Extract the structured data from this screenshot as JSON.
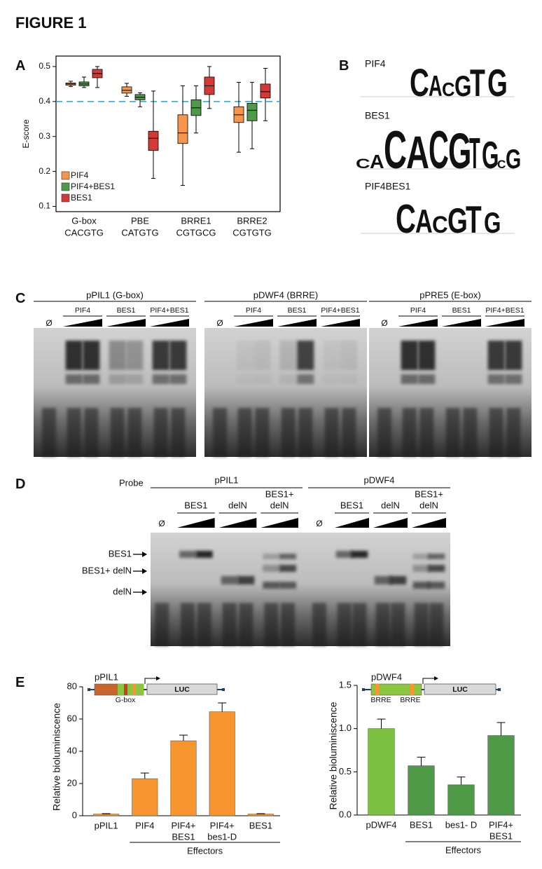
{
  "figure_title": "FIGURE 1",
  "panel_labels": [
    "A",
    "B",
    "C",
    "D",
    "E"
  ],
  "chart_data": [
    {
      "type": "box",
      "y_label": "E-score",
      "categories": [
        "G-box",
        "PBE",
        "BRRE1",
        "BRRE2"
      ],
      "category_sequences": [
        "CACGTG",
        "CATGTG",
        "CGTGCG",
        "CGTGTG"
      ],
      "ylim": [
        0.085,
        0.53
      ],
      "yticks": [
        0.1,
        0.2,
        0.3,
        0.4,
        0.5
      ],
      "reference_line": 0.4,
      "reference_color": "#2aa3c8",
      "legend": "lower left",
      "series": [
        {
          "name": "PIF4",
          "color": "#f7954a",
          "values": [
            {
              "min": 0.443,
              "q1": 0.447,
              "median": 0.45,
              "q3": 0.453,
              "max": 0.458
            },
            {
              "min": 0.415,
              "q1": 0.424,
              "median": 0.432,
              "q3": 0.442,
              "max": 0.452
            },
            {
              "min": 0.16,
              "q1": 0.28,
              "median": 0.31,
              "q3": 0.362,
              "max": 0.445
            },
            {
              "min": 0.255,
              "q1": 0.34,
              "median": 0.362,
              "q3": 0.385,
              "max": 0.455
            }
          ]
        },
        {
          "name": "PIF4+BES1",
          "color": "#4e9a48",
          "values": [
            {
              "min": 0.44,
              "q1": 0.445,
              "median": 0.45,
              "q3": 0.456,
              "max": 0.47
            },
            {
              "min": 0.385,
              "q1": 0.405,
              "median": 0.412,
              "q3": 0.42,
              "max": 0.425
            },
            {
              "min": 0.31,
              "q1": 0.36,
              "median": 0.382,
              "q3": 0.405,
              "max": 0.445
            },
            {
              "min": 0.265,
              "q1": 0.345,
              "median": 0.375,
              "q3": 0.395,
              "max": 0.455
            }
          ]
        },
        {
          "name": "BES1",
          "color": "#d43a35",
          "values": [
            {
              "min": 0.44,
              "q1": 0.468,
              "median": 0.48,
              "q3": 0.492,
              "max": 0.5
            },
            {
              "min": 0.18,
              "q1": 0.26,
              "median": 0.295,
              "q3": 0.315,
              "max": 0.43
            },
            {
              "min": 0.38,
              "q1": 0.42,
              "median": 0.445,
              "q3": 0.47,
              "max": 0.5
            },
            {
              "min": 0.345,
              "q1": 0.41,
              "median": 0.428,
              "q3": 0.45,
              "max": 0.495
            }
          ]
        }
      ]
    },
    {
      "type": "bar",
      "y_label": "Relative bioluminiscence",
      "categories": [
        [
          "pPIL1"
        ],
        [
          "PIF4"
        ],
        [
          "PIF4+",
          "BES1"
        ],
        [
          "PIF4+",
          "bes1-D"
        ],
        [
          "BES1"
        ]
      ],
      "values": [
        1,
        23,
        46.5,
        64.5,
        1
      ],
      "errors": [
        0.3,
        3.5,
        3.5,
        5.5,
        0.3
      ],
      "colors": [
        "#f7962f",
        "#f7962f",
        "#f7962f",
        "#f7962f",
        "#f7962f"
      ],
      "ylim": [
        0,
        80
      ],
      "yticks": [
        0,
        20,
        40,
        60,
        80
      ],
      "group_label": "Effectors",
      "promoter": {
        "name": "pPIL1",
        "elements": [
          "G-box"
        ],
        "reporter": "LUC"
      }
    },
    {
      "type": "bar",
      "y_label": "Relative bioluminiscence",
      "categories": [
        [
          "pDWF4"
        ],
        [
          "BES1"
        ],
        [
          "bes1- D"
        ],
        [
          "PIF4+",
          "BES1"
        ]
      ],
      "values": [
        1.0,
        0.57,
        0.35,
        0.92
      ],
      "errors": [
        0.11,
        0.1,
        0.09,
        0.15
      ],
      "colors": [
        "#7dc142",
        "#4f9a47",
        "#4f9a47",
        "#4f9a47"
      ],
      "ylim": [
        0,
        1.5
      ],
      "yticks": [
        {
          "value": 0,
          "label": "0.0"
        },
        0.5,
        {
          "value": 1,
          "label": "1.0"
        },
        1.5
      ],
      "group_label": "Effectors",
      "promoter": {
        "name": "pDWF4",
        "elements": [
          "BRRE",
          "BRRE"
        ],
        "reporter": "LUC"
      }
    }
  ],
  "panel_b": {
    "logos": [
      {
        "name": "PIF4",
        "letters": "CACGTG"
      },
      {
        "name": "BES1",
        "letters": "CACACGTGCG"
      },
      {
        "name": "PIF4BES1",
        "letters": "CACGTG"
      }
    ]
  },
  "panel_c": {
    "gels": [
      {
        "probe": "pPIL1 (G-box)",
        "null": "Ø",
        "groups": [
          "PIF4",
          "BES1",
          "PIF4+BES1"
        ]
      },
      {
        "probe": "pDWF4 (BRRE)",
        "null": "Ø",
        "groups": [
          "PIF4",
          "BES1",
          "PIF4+BES1"
        ]
      },
      {
        "probe": "pPRE5 (E-box)",
        "null": "Ø",
        "groups": [
          "PIF4",
          "BES1",
          "PIF4+BES1"
        ]
      }
    ]
  },
  "panel_d": {
    "probe_label": "Probe",
    "probes": [
      {
        "name": "pPIL1",
        "null": "Ø",
        "groups": [
          [
            "BES1"
          ],
          [
            "delN"
          ],
          [
            "BES1+",
            "delN"
          ]
        ]
      },
      {
        "name": "pDWF4",
        "null": "Ø",
        "groups": [
          [
            "BES1"
          ],
          [
            "delN"
          ],
          [
            "BES1+",
            "delN"
          ]
        ]
      }
    ],
    "band_labels": [
      "BES1",
      "BES1+ delN",
      "delN"
    ]
  }
}
